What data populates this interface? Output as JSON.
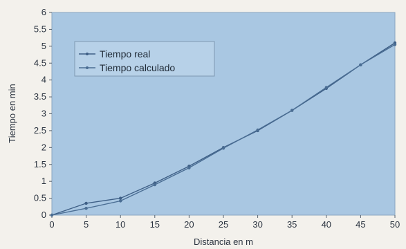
{
  "chart_data": {
    "type": "line",
    "title": "",
    "xlabel": "Distancia en m",
    "ylabel": "Tiempo en min",
    "xlim": [
      0,
      50
    ],
    "ylim": [
      0,
      6
    ],
    "xticks": [
      0,
      5,
      10,
      15,
      20,
      25,
      30,
      35,
      40,
      45,
      50
    ],
    "yticks": [
      0,
      0.5,
      1,
      1.5,
      2,
      2.5,
      3,
      3.5,
      4,
      4.5,
      5,
      5.5,
      6
    ],
    "grid": false,
    "legend_position": "top-left",
    "series": [
      {
        "name": "Tiempo real",
        "color": "#3e5f86",
        "x": [
          0,
          5,
          10,
          15,
          20,
          25,
          30,
          35,
          40,
          45,
          50
        ],
        "y": [
          0,
          0.35,
          0.5,
          0.95,
          1.45,
          2.0,
          2.5,
          3.1,
          3.75,
          4.45,
          5.1
        ]
      },
      {
        "name": "Tiempo calculado",
        "color": "#4a6d93",
        "x": [
          0,
          5,
          10,
          15,
          20,
          25,
          30,
          35,
          40,
          45,
          50
        ],
        "y": [
          0,
          0.2,
          0.42,
          0.9,
          1.4,
          1.98,
          2.52,
          3.1,
          3.78,
          4.45,
          5.05
        ]
      }
    ]
  }
}
